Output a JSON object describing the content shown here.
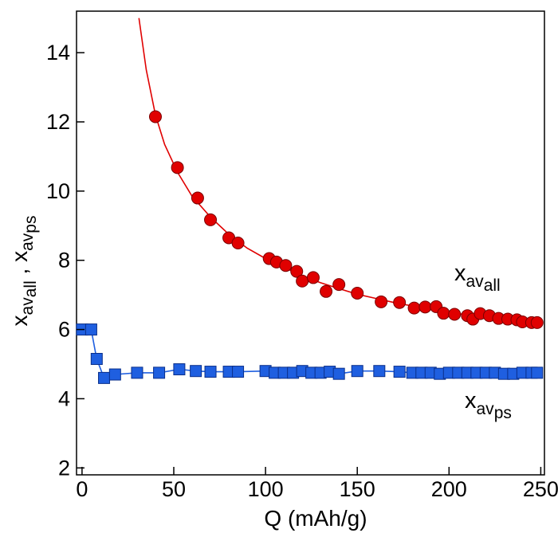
{
  "chart_data": {
    "type": "scatter",
    "xlabel": "Q (mAh/g)",
    "ylabel": {
      "main": "x",
      "sub1": "av",
      "subsub1": "all",
      "sep": " , ",
      "main2": "x",
      "sub2": "av",
      "subsub2": "ps"
    },
    "xlim": [
      -3,
      252
    ],
    "ylim": [
      1.8,
      15.2
    ],
    "xticks": [
      0,
      50,
      100,
      150,
      200,
      250
    ],
    "yticks": [
      2,
      4,
      6,
      8,
      10,
      12,
      14
    ],
    "grid": false,
    "legend": "none",
    "series": [
      {
        "key": "all",
        "label": {
          "main": "x",
          "sub": "av",
          "subsub": "all"
        },
        "color": "#e00000",
        "marker": "circle",
        "points": [
          [
            40,
            12.15
          ],
          [
            52,
            10.68
          ],
          [
            63,
            9.8
          ],
          [
            70,
            9.17
          ],
          [
            80,
            8.65
          ],
          [
            85,
            8.5
          ],
          [
            102,
            8.05
          ],
          [
            106,
            7.95
          ],
          [
            111,
            7.85
          ],
          [
            117,
            7.68
          ],
          [
            120,
            7.4
          ],
          [
            126,
            7.5
          ],
          [
            133,
            7.1
          ],
          [
            140,
            7.3
          ],
          [
            150,
            7.05
          ],
          [
            163,
            6.8
          ],
          [
            173,
            6.78
          ],
          [
            181,
            6.62
          ],
          [
            187,
            6.65
          ],
          [
            193,
            6.66
          ],
          [
            197,
            6.47
          ],
          [
            203,
            6.44
          ],
          [
            210,
            6.4
          ],
          [
            213,
            6.3
          ],
          [
            217,
            6.46
          ],
          [
            222,
            6.4
          ],
          [
            227,
            6.32
          ],
          [
            232,
            6.3
          ],
          [
            237,
            6.28
          ],
          [
            240,
            6.22
          ],
          [
            245,
            6.2
          ],
          [
            248,
            6.2
          ]
        ],
        "fit": [
          [
            31,
            15.0
          ],
          [
            35,
            13.5
          ],
          [
            40,
            12.2
          ],
          [
            45,
            11.35
          ],
          [
            52,
            10.55
          ],
          [
            60,
            9.85
          ],
          [
            70,
            9.25
          ],
          [
            80,
            8.75
          ],
          [
            90,
            8.35
          ],
          [
            100,
            8.05
          ],
          [
            110,
            7.8
          ],
          [
            120,
            7.55
          ],
          [
            130,
            7.35
          ],
          [
            140,
            7.18
          ],
          [
            150,
            7.02
          ],
          [
            160,
            6.9
          ],
          [
            170,
            6.78
          ],
          [
            180,
            6.68
          ],
          [
            190,
            6.58
          ],
          [
            200,
            6.5
          ],
          [
            210,
            6.42
          ],
          [
            220,
            6.35
          ],
          [
            230,
            6.3
          ],
          [
            240,
            6.24
          ],
          [
            248,
            6.2
          ]
        ]
      },
      {
        "key": "ps",
        "label": {
          "main": "x",
          "sub": "av",
          "subsub": "ps"
        },
        "color": "#1f5fe0",
        "marker": "square",
        "points": [
          [
            0,
            6.0
          ],
          [
            5,
            6.0
          ],
          [
            8,
            5.15
          ],
          [
            12,
            4.6
          ],
          [
            18,
            4.7
          ],
          [
            30,
            4.75
          ],
          [
            42,
            4.75
          ],
          [
            53,
            4.85
          ],
          [
            62,
            4.8
          ],
          [
            70,
            4.78
          ],
          [
            80,
            4.78
          ],
          [
            85,
            4.78
          ],
          [
            100,
            4.8
          ],
          [
            105,
            4.75
          ],
          [
            110,
            4.75
          ],
          [
            115,
            4.75
          ],
          [
            120,
            4.8
          ],
          [
            125,
            4.75
          ],
          [
            130,
            4.75
          ],
          [
            135,
            4.78
          ],
          [
            140,
            4.72
          ],
          [
            150,
            4.8
          ],
          [
            162,
            4.8
          ],
          [
            173,
            4.78
          ],
          [
            180,
            4.75
          ],
          [
            185,
            4.75
          ],
          [
            190,
            4.75
          ],
          [
            195,
            4.72
          ],
          [
            200,
            4.75
          ],
          [
            205,
            4.75
          ],
          [
            210,
            4.75
          ],
          [
            215,
            4.75
          ],
          [
            220,
            4.75
          ],
          [
            225,
            4.75
          ],
          [
            230,
            4.72
          ],
          [
            235,
            4.72
          ],
          [
            240,
            4.75
          ],
          [
            245,
            4.75
          ],
          [
            248,
            4.75
          ]
        ]
      }
    ]
  }
}
